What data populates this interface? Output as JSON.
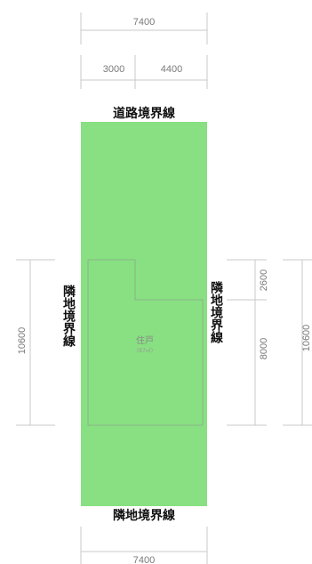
{
  "dimensions": {
    "top_total": "7400",
    "top_left": "3000",
    "top_right": "4400",
    "left_total": "10600",
    "right_upper": "2600",
    "right_lower": "8000",
    "right_total": "10600",
    "bottom_total": "7400"
  },
  "boundaries": {
    "top": "道路境界線",
    "left": "隣地境界線",
    "right": "隣地境界線",
    "bottom": "隣地境界線"
  },
  "building": {
    "name": "住戸",
    "area": "(87㎡)"
  },
  "colors": {
    "lot_fill": "#88e082",
    "building_outline": "#8aa88a",
    "dimension_line": "#c8c8c8"
  }
}
